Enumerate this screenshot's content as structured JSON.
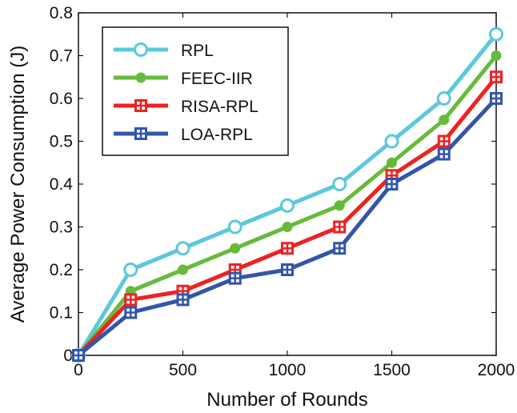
{
  "chart_data": {
    "type": "line",
    "title": "",
    "xlabel": "Number of Rounds",
    "ylabel": "Average Power Consumption (J)",
    "xlim": [
      0,
      2000
    ],
    "ylim": [
      0,
      0.8
    ],
    "xticks": [
      0,
      500,
      1000,
      1500,
      2000
    ],
    "xtick_labels": [
      "0",
      "500",
      "1000",
      "1500",
      "2000"
    ],
    "yticks": [
      0,
      0.1,
      0.2,
      0.3,
      0.4,
      0.5,
      0.6,
      0.7,
      0.8
    ],
    "ytick_labels": [
      "0",
      "0.1",
      "0.2",
      "0.3",
      "0.4",
      "0.5",
      "0.6",
      "0.7",
      "0.8"
    ],
    "grid": false,
    "legend_position": "top-left",
    "x": [
      0,
      250,
      500,
      750,
      1000,
      1250,
      1500,
      1750,
      2000
    ],
    "series": [
      {
        "name": "RPL",
        "color": "#5bc8dc",
        "marker": "circle-open",
        "values": [
          0,
          0.2,
          0.25,
          0.3,
          0.35,
          0.4,
          0.5,
          0.6,
          0.75
        ]
      },
      {
        "name": "FEEC-IIR",
        "color": "#66bb3a",
        "marker": "dot",
        "values": [
          0,
          0.15,
          0.2,
          0.25,
          0.3,
          0.35,
          0.45,
          0.55,
          0.7
        ]
      },
      {
        "name": "RISA-RPL",
        "color": "#ee2222",
        "marker": "square-plus",
        "values": [
          0,
          0.13,
          0.15,
          0.2,
          0.25,
          0.3,
          0.42,
          0.5,
          0.65
        ]
      },
      {
        "name": "LOA-RPL",
        "color": "#3355aa",
        "marker": "square-plus",
        "values": [
          0,
          0.1,
          0.13,
          0.18,
          0.2,
          0.25,
          0.4,
          0.47,
          0.6
        ]
      }
    ]
  }
}
